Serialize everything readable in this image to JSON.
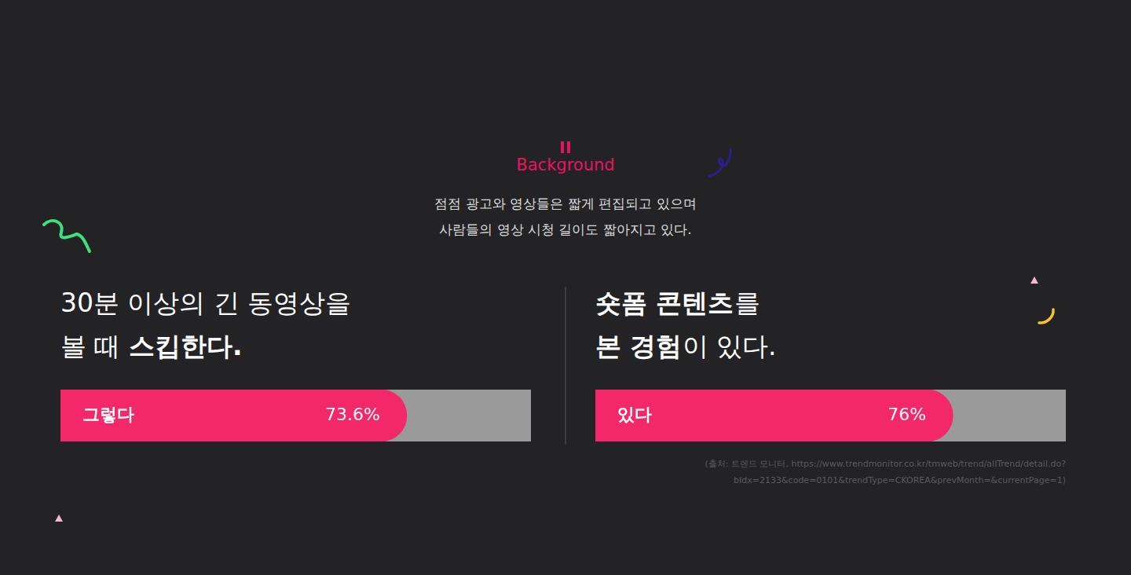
{
  "header": {
    "label": "Background",
    "text": [
      "점점 광고와 영상들은 짧게 편집되고 있으며",
      "사람들의 영상 시청 길이도 짧아지고 있다."
    ]
  },
  "chart_data": [
    {
      "type": "bar",
      "orientation": "horizontal",
      "title": [
        "30분 이상의 긴 동영상을",
        "볼 때 스킵한다."
      ],
      "title_emphasis": [
        "스킵한다."
      ],
      "categories": [
        "그렇다"
      ],
      "values": [
        73.6
      ],
      "value_labels": [
        "73.6%"
      ],
      "color": "#f2286b",
      "xlim": [
        0,
        100
      ],
      "tick_labels": false,
      "grid": false,
      "data_labels": true
    },
    {
      "type": "bar",
      "orientation": "horizontal",
      "title": [
        "숏폼 콘텐츠를",
        "본 경험이 있다."
      ],
      "title_emphasis": [
        "숏폼 콘텐츠",
        "본 경험"
      ],
      "categories": [
        "있다"
      ],
      "values": [
        76
      ],
      "value_labels": [
        "76%"
      ],
      "color": "#f2286b",
      "xlim": [
        0,
        100
      ],
      "tick_labels": false,
      "grid": false,
      "data_labels": true
    }
  ],
  "source": [
    "(출처: 트렌드 모니터, https://www.trendmonitor.co.kr/tmweb/trend/allTrend/detail.do?",
    "bIdx=2133&code=0101&trendType=CKOREA&prevMonth=&currentPage=1)"
  ]
}
